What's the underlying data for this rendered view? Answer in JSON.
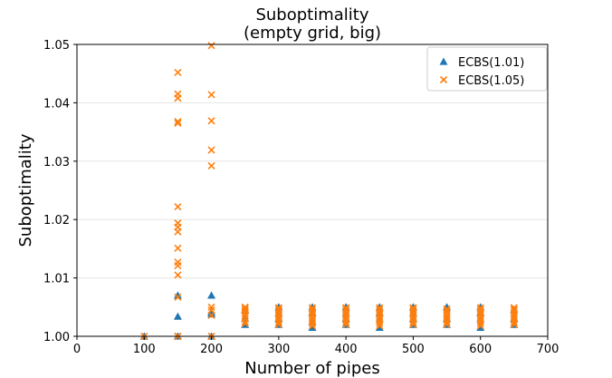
{
  "chart_data": {
    "type": "scatter",
    "title": "Suboptimality",
    "subtitle": "(empty grid, big)",
    "xlabel": "Number of pipes",
    "ylabel": "Suboptimality",
    "xlim": [
      0,
      700
    ],
    "ylim": [
      1.0,
      1.05
    ],
    "xticks": [
      0,
      100,
      200,
      300,
      400,
      500,
      600,
      700
    ],
    "xtick_labels": [
      "0",
      "100",
      "200",
      "300",
      "400",
      "500",
      "600",
      "700"
    ],
    "yticks": [
      1.0,
      1.01,
      1.02,
      1.03,
      1.04,
      1.05
    ],
    "ytick_labels": [
      "1.00",
      "1.01",
      "1.02",
      "1.03",
      "1.04",
      "1.05"
    ],
    "grid": "horizontal",
    "legend_position": "top-right",
    "series": [
      {
        "name": "ECBS(1.01)",
        "marker": "triangle",
        "color": "#1f77b4",
        "x": [
          100,
          150,
          150,
          150,
          200,
          200,
          200,
          200,
          250,
          250,
          250,
          300,
          300,
          300,
          300,
          350,
          350,
          350,
          350,
          400,
          400,
          400,
          400,
          450,
          450,
          450,
          450,
          500,
          500,
          500,
          500,
          550,
          550,
          550,
          600,
          600,
          600,
          600,
          650,
          650,
          650
        ],
        "y": [
          1.0,
          1.0,
          1.0034,
          1.007,
          1.0,
          1.0038,
          1.0042,
          1.007,
          1.002,
          1.003,
          1.0045,
          1.002,
          1.003,
          1.004,
          1.005,
          1.0015,
          1.0025,
          1.004,
          1.005,
          1.002,
          1.003,
          1.004,
          1.005,
          1.0015,
          1.003,
          1.004,
          1.005,
          1.002,
          1.003,
          1.004,
          1.005,
          1.002,
          1.003,
          1.005,
          1.0015,
          1.003,
          1.004,
          1.005,
          1.002,
          1.003,
          1.0045
        ]
      },
      {
        "name": "ECBS(1.05)",
        "marker": "x",
        "color": "#ff7f0e",
        "x": [
          100,
          150,
          150,
          150,
          150,
          150,
          150,
          150,
          150,
          150,
          150,
          150,
          150,
          150,
          150,
          150,
          150,
          200,
          200,
          200,
          200,
          200,
          200,
          200,
          200,
          200,
          250,
          250,
          250,
          250,
          250,
          250,
          250,
          250,
          250,
          300,
          300,
          300,
          300,
          300,
          300,
          300,
          300,
          300,
          350,
          350,
          350,
          350,
          350,
          350,
          350,
          350,
          350,
          400,
          400,
          400,
          400,
          400,
          400,
          400,
          400,
          400,
          450,
          450,
          450,
          450,
          450,
          450,
          450,
          450,
          450,
          500,
          500,
          500,
          500,
          500,
          500,
          500,
          500,
          500,
          550,
          550,
          550,
          550,
          550,
          550,
          550,
          550,
          600,
          600,
          600,
          600,
          600,
          600,
          600,
          600,
          600,
          650,
          650,
          650,
          650,
          650,
          650,
          650,
          650,
          650
        ],
        "y": [
          1.0,
          1.0,
          1.0067,
          1.0105,
          1.0121,
          1.0127,
          1.0151,
          1.0179,
          1.0187,
          1.0194,
          1.0222,
          1.0365,
          1.0368,
          1.0408,
          1.0415,
          1.0452,
          1.0,
          1.0,
          1.0036,
          1.0045,
          1.005,
          1.0292,
          1.0319,
          1.0369,
          1.0414,
          1.0498,
          1.0025,
          1.003,
          1.0035,
          1.0039,
          1.0043,
          1.0046,
          1.0049,
          1.0022,
          1.005,
          1.002,
          1.0024,
          1.0028,
          1.0032,
          1.0036,
          1.004,
          1.0044,
          1.0047,
          1.0049,
          1.0018,
          1.0022,
          1.0026,
          1.003,
          1.0034,
          1.0038,
          1.0042,
          1.0046,
          1.0049,
          1.002,
          1.0024,
          1.0028,
          1.0032,
          1.0036,
          1.004,
          1.0044,
          1.0047,
          1.0049,
          1.0018,
          1.0022,
          1.0026,
          1.003,
          1.0034,
          1.0038,
          1.0042,
          1.0046,
          1.0049,
          1.002,
          1.0024,
          1.0028,
          1.0032,
          1.0036,
          1.004,
          1.0044,
          1.0047,
          1.0049,
          1.002,
          1.0024,
          1.0028,
          1.0032,
          1.0036,
          1.004,
          1.0044,
          1.0047,
          1.0018,
          1.0022,
          1.0026,
          1.003,
          1.0034,
          1.0038,
          1.0042,
          1.0046,
          1.0049,
          1.002,
          1.0024,
          1.0028,
          1.0032,
          1.0036,
          1.004,
          1.0044,
          1.0047,
          1.0049
        ]
      }
    ]
  }
}
